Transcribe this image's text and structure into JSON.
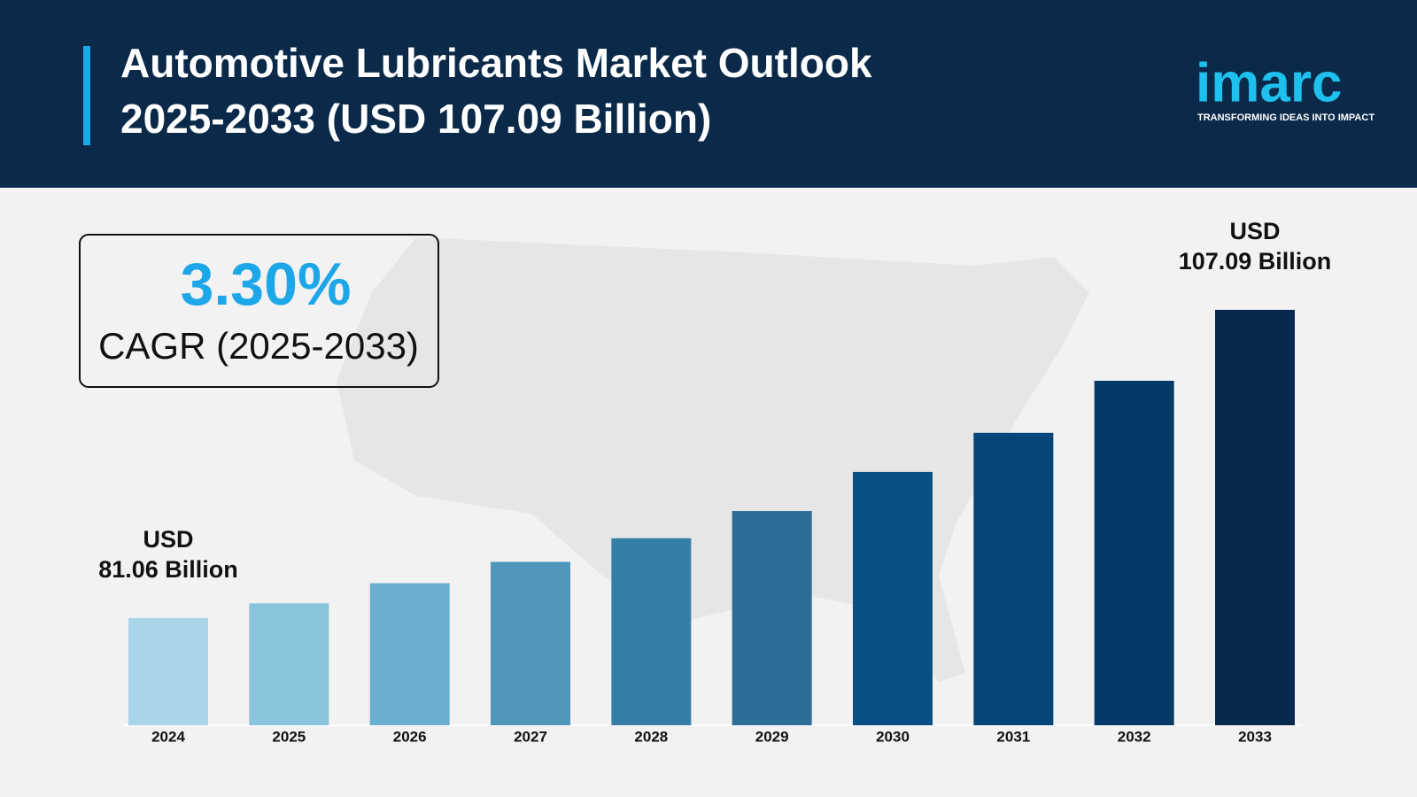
{
  "chart_data": {
    "type": "bar",
    "title_line1": "Automotive Lubricants Market Outlook",
    "title_line2": "2025-2033 (USD 107.09 Billion)",
    "logo": "imarc",
    "tagline": "TRANSFORMING IDEAS INTO IMPACT",
    "cagr_value": "3.30%",
    "cagr_label": "CAGR (2025-2033)",
    "categories": [
      "2024",
      "2025",
      "2026",
      "2027",
      "2028",
      "2029",
      "2030",
      "2031",
      "2032",
      "2033"
    ],
    "values": [
      81.06,
      82.3,
      84.0,
      85.8,
      87.8,
      90.1,
      93.4,
      96.7,
      101.1,
      107.09
    ],
    "value_labels": [
      "USD 81.06 Billion",
      null,
      null,
      null,
      null,
      null,
      null,
      null,
      null,
      "USD 107.09 Billion"
    ],
    "colors": [
      "#a8d5e8",
      "#8ac4dc",
      "#6aafcf",
      "#4f96bb",
      "#357fa7",
      "#2b6e96",
      "#074f85",
      "#05467a",
      "#053a68",
      "#06294d"
    ],
    "ylim": [
      72,
      110
    ]
  }
}
